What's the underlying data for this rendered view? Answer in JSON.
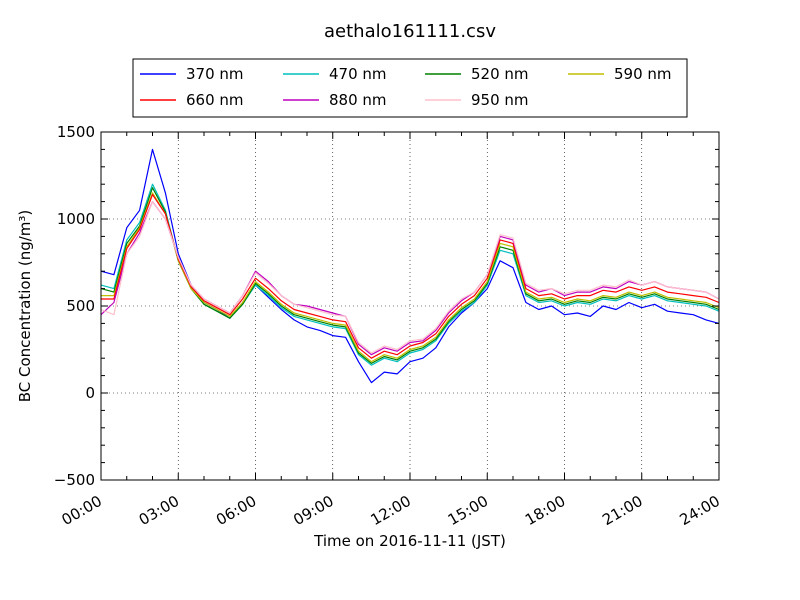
{
  "chart_data": {
    "type": "line",
    "title": "aethalo161111.csv",
    "xlabel": "Time on 2016-11-11 (JST)",
    "ylabel": "BC Concentration (ng/m³)",
    "xlim": [
      "00:00",
      "24:00"
    ],
    "ylim": [
      -500,
      1500
    ],
    "x_ticks": [
      "00:00",
      "03:00",
      "06:00",
      "09:00",
      "12:00",
      "15:00",
      "18:00",
      "21:00",
      "24:00"
    ],
    "y_ticks": [
      "1500",
      "1000",
      "500",
      "0",
      "−500"
    ],
    "grid": true,
    "legend_position": "top",
    "series": [
      {
        "name": "370 nm",
        "color": "#0000ff",
        "x": [
          "00:00",
          "00:30",
          "01:00",
          "01:30",
          "02:00",
          "02:30",
          "03:00",
          "03:30",
          "04:00",
          "04:30",
          "05:00",
          "05:30",
          "06:00",
          "06:30",
          "07:00",
          "07:30",
          "08:00",
          "08:30",
          "09:00",
          "09:30",
          "10:00",
          "10:30",
          "11:00",
          "11:30",
          "12:00",
          "12:30",
          "13:00",
          "13:30",
          "14:00",
          "14:30",
          "15:00",
          "15:30",
          "16:00",
          "16:30",
          "17:00",
          "17:30",
          "18:00",
          "18:30",
          "19:00",
          "19:30",
          "20:00",
          "20:30",
          "21:00",
          "21:30",
          "22:00",
          "22:30",
          "23:00",
          "23:30",
          "24:00"
        ],
        "y": [
          700,
          680,
          950,
          1050,
          1400,
          1150,
          800,
          620,
          520,
          480,
          430,
          520,
          620,
          550,
          480,
          420,
          380,
          360,
          330,
          320,
          180,
          60,
          120,
          110,
          180,
          200,
          260,
          380,
          460,
          520,
          600,
          760,
          720,
          520,
          480,
          500,
          450,
          460,
          440,
          500,
          480,
          520,
          490,
          510,
          470,
          460,
          450,
          420,
          400
        ]
      },
      {
        "name": "470 nm",
        "color": "#00bfbf",
        "x": [
          "00:00",
          "00:30",
          "01:00",
          "01:30",
          "02:00",
          "02:30",
          "03:00",
          "03:30",
          "04:00",
          "04:30",
          "05:00",
          "05:30",
          "06:00",
          "06:30",
          "07:00",
          "07:30",
          "08:00",
          "08:30",
          "09:00",
          "09:30",
          "10:00",
          "10:30",
          "11:00",
          "11:30",
          "12:00",
          "12:30",
          "13:00",
          "13:30",
          "14:00",
          "14:30",
          "15:00",
          "15:30",
          "16:00",
          "16:30",
          "17:00",
          "17:30",
          "18:00",
          "18:30",
          "19:00",
          "19:30",
          "20:00",
          "20:30",
          "21:00",
          "21:30",
          "22:00",
          "22:30",
          "23:00",
          "23:30",
          "24:00"
        ],
        "y": [
          620,
          600,
          880,
          980,
          1200,
          1050,
          760,
          600,
          510,
          470,
          430,
          510,
          620,
          560,
          490,
          440,
          420,
          400,
          380,
          370,
          220,
          160,
          200,
          180,
          230,
          250,
          300,
          400,
          470,
          520,
          620,
          820,
          800,
          560,
          520,
          530,
          500,
          520,
          510,
          540,
          530,
          560,
          540,
          560,
          530,
          520,
          510,
          500,
          470
        ]
      },
      {
        "name": "520 nm",
        "color": "#008000",
        "x": [
          "00:00",
          "00:30",
          "01:00",
          "01:30",
          "02:00",
          "02:30",
          "03:00",
          "03:30",
          "04:00",
          "04:30",
          "05:00",
          "05:30",
          "06:00",
          "06:30",
          "07:00",
          "07:30",
          "08:00",
          "08:30",
          "09:00",
          "09:30",
          "10:00",
          "10:30",
          "11:00",
          "11:30",
          "12:00",
          "12:30",
          "13:00",
          "13:30",
          "14:00",
          "14:30",
          "15:00",
          "15:30",
          "16:00",
          "16:30",
          "17:00",
          "17:30",
          "18:00",
          "18:30",
          "19:00",
          "19:30",
          "20:00",
          "20:30",
          "21:00",
          "21:30",
          "22:00",
          "22:30",
          "23:00",
          "23:30",
          "24:00"
        ],
        "y": [
          600,
          580,
          860,
          960,
          1180,
          1040,
          760,
          600,
          510,
          470,
          430,
          510,
          630,
          570,
          500,
          450,
          430,
          410,
          390,
          380,
          230,
          170,
          210,
          190,
          240,
          260,
          310,
          410,
          480,
          530,
          630,
          840,
          820,
          570,
          530,
          540,
          510,
          530,
          520,
          550,
          540,
          570,
          550,
          570,
          540,
          530,
          520,
          510,
          480
        ]
      },
      {
        "name": "590 nm",
        "color": "#bfbf00",
        "x": [
          "00:00",
          "00:30",
          "01:00",
          "01:30",
          "02:00",
          "02:30",
          "03:00",
          "03:30",
          "04:00",
          "04:30",
          "05:00",
          "05:30",
          "06:00",
          "06:30",
          "07:00",
          "07:30",
          "08:00",
          "08:30",
          "09:00",
          "09:30",
          "10:00",
          "10:30",
          "11:00",
          "11:30",
          "12:00",
          "12:30",
          "13:00",
          "13:30",
          "14:00",
          "14:30",
          "15:00",
          "15:30",
          "16:00",
          "16:30",
          "17:00",
          "17:30",
          "18:00",
          "18:30",
          "19:00",
          "19:30",
          "20:00",
          "20:30",
          "21:00",
          "21:30",
          "22:00",
          "22:30",
          "23:00",
          "23:30",
          "24:00"
        ],
        "y": [
          560,
          560,
          840,
          950,
          1150,
          1030,
          760,
          600,
          520,
          480,
          440,
          520,
          640,
          580,
          510,
          460,
          440,
          420,
          400,
          390,
          240,
          180,
          220,
          200,
          250,
          270,
          320,
          420,
          490,
          540,
          640,
          860,
          840,
          580,
          540,
          550,
          520,
          540,
          530,
          560,
          550,
          580,
          560,
          580,
          550,
          540,
          530,
          520,
          490
        ]
      },
      {
        "name": "660 nm",
        "color": "#ff0000",
        "x": [
          "00:00",
          "00:30",
          "01:00",
          "01:30",
          "02:00",
          "02:30",
          "03:00",
          "03:30",
          "04:00",
          "04:30",
          "05:00",
          "05:30",
          "06:00",
          "06:30",
          "07:00",
          "07:30",
          "08:00",
          "08:30",
          "09:00",
          "09:30",
          "10:00",
          "10:30",
          "11:00",
          "11:30",
          "12:00",
          "12:30",
          "13:00",
          "13:30",
          "14:00",
          "14:30",
          "15:00",
          "15:30",
          "16:00",
          "16:30",
          "17:00",
          "17:30",
          "18:00",
          "18:30",
          "19:00",
          "19:30",
          "20:00",
          "20:30",
          "21:00",
          "21:30",
          "22:00",
          "22:30",
          "23:00",
          "23:30",
          "24:00"
        ],
        "y": [
          540,
          540,
          830,
          940,
          1140,
          1030,
          770,
          610,
          530,
          490,
          450,
          540,
          660,
          600,
          530,
          480,
          460,
          440,
          420,
          410,
          260,
          200,
          240,
          220,
          270,
          290,
          340,
          440,
          510,
          560,
          660,
          880,
          860,
          600,
          560,
          570,
          540,
          560,
          560,
          590,
          580,
          610,
          590,
          610,
          580,
          570,
          560,
          550,
          520
        ]
      },
      {
        "name": "880 nm",
        "color": "#bf00bf",
        "x": [
          "00:00",
          "00:30",
          "01:00",
          "01:30",
          "02:00",
          "02:30",
          "03:00",
          "03:30",
          "04:00",
          "04:30",
          "05:00",
          "05:30",
          "06:00",
          "06:30",
          "07:00",
          "07:30",
          "08:00",
          "08:30",
          "09:00",
          "09:30",
          "10:00",
          "10:30",
          "11:00",
          "11:30",
          "12:00",
          "12:30",
          "13:00",
          "13:30",
          "14:00",
          "14:30",
          "15:00",
          "15:30",
          "16:00",
          "16:30",
          "17:00",
          "17:30",
          "18:00",
          "18:30",
          "19:00",
          "19:30",
          "20:00",
          "20:30",
          "21:00",
          "21:30",
          "22:00",
          "22:30",
          "23:00",
          "23:30",
          "24:00"
        ],
        "y": [
          450,
          520,
          800,
          920,
          1100,
          1000,
          780,
          620,
          540,
          500,
          460,
          560,
          700,
          640,
          560,
          510,
          500,
          480,
          460,
          440,
          280,
          220,
          260,
          240,
          290,
          300,
          360,
          460,
          530,
          580,
          680,
          900,
          880,
          620,
          580,
          600,
          560,
          580,
          580,
          610,
          600,
          640,
          620,
          640,
          610,
          600,
          590,
          580,
          540
        ]
      },
      {
        "name": "950 nm",
        "color": "#ffc0cb",
        "x": [
          "00:00",
          "00:30",
          "01:00",
          "01:30",
          "02:00",
          "02:30",
          "03:00",
          "03:30",
          "04:00",
          "04:30",
          "05:00",
          "05:30",
          "06:00",
          "06:30",
          "07:00",
          "07:30",
          "08:00",
          "08:30",
          "09:00",
          "09:30",
          "10:00",
          "10:30",
          "11:00",
          "11:30",
          "12:00",
          "12:30",
          "13:00",
          "13:30",
          "14:00",
          "14:30",
          "15:00",
          "15:30",
          "16:00",
          "16:30",
          "17:00",
          "17:30",
          "18:00",
          "18:30",
          "19:00",
          "19:30",
          "20:00",
          "20:30",
          "21:00",
          "21:30",
          "22:00",
          "22:30",
          "23:00",
          "23:30",
          "24:00"
        ],
        "y": [
          480,
          450,
          800,
          900,
          1100,
          1000,
          780,
          620,
          540,
          500,
          460,
          560,
          690,
          630,
          560,
          510,
          490,
          470,
          450,
          440,
          290,
          230,
          270,
          250,
          300,
          310,
          370,
          470,
          540,
          580,
          680,
          910,
          890,
          630,
          590,
          600,
          570,
          590,
          590,
          620,
          610,
          650,
          620,
          640,
          610,
          600,
          590,
          580,
          540
        ]
      }
    ]
  }
}
